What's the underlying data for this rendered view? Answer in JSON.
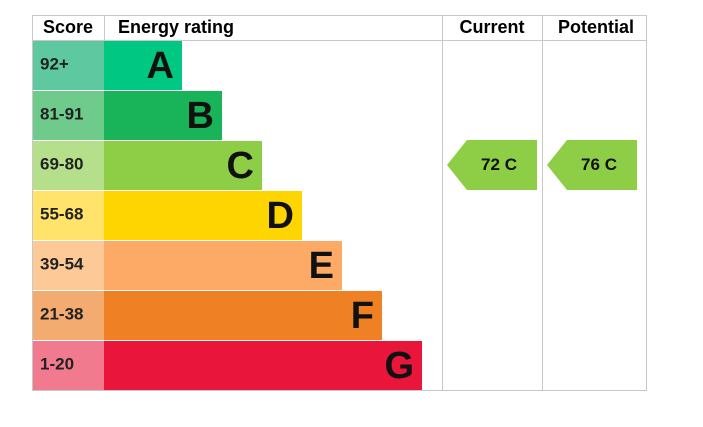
{
  "header": {
    "score": "Score",
    "rating": "Energy rating",
    "current": "Current",
    "potential": "Potential"
  },
  "bands": [
    {
      "score": "92+",
      "letter": "A",
      "color": "#00c781",
      "score_color": "#5ec9a0"
    },
    {
      "score": "81-91",
      "letter": "B",
      "color": "#19b459",
      "score_color": "#6fcb8c"
    },
    {
      "score": "69-80",
      "letter": "C",
      "color": "#8dce46",
      "score_color": "#b6df8b"
    },
    {
      "score": "55-68",
      "letter": "D",
      "color": "#ffd500",
      "score_color": "#ffe36a"
    },
    {
      "score": "39-54",
      "letter": "E",
      "color": "#fcaa65",
      "score_color": "#fdca97"
    },
    {
      "score": "21-38",
      "letter": "F",
      "color": "#ef8023",
      "score_color": "#f4ab6f"
    },
    {
      "score": "1-20",
      "letter": "G",
      "color": "#e9153b",
      "score_color": "#f27a8f"
    }
  ],
  "current": {
    "value": 72,
    "band": "C"
  },
  "potential": {
    "value": 76,
    "band": "C"
  }
}
